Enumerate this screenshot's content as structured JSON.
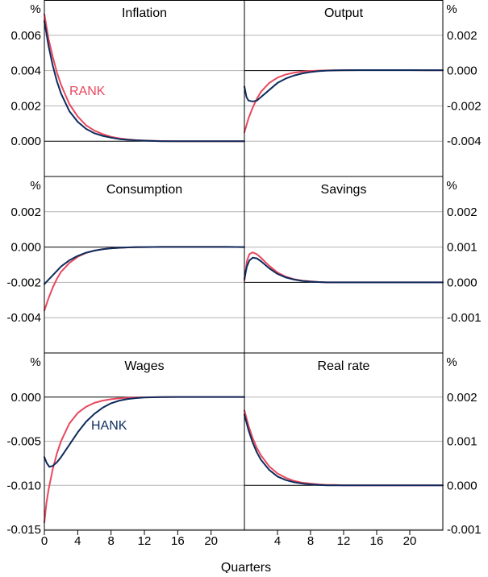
{
  "chart_data": {
    "type": "line",
    "x_axis_label": "Quarters",
    "x_ticks": [
      0,
      4,
      8,
      12,
      16,
      20
    ],
    "x_range": [
      0,
      24
    ],
    "unit_label": "%",
    "colors": {
      "RANK": "#e8485d",
      "HANK": "#0d2b5c",
      "grid": "#b3b3b3"
    },
    "series_labels": [
      {
        "panel": "inflation",
        "text": "RANK",
        "color": "#e8485d"
      },
      {
        "panel": "wages",
        "text": "HANK",
        "color": "#0d2b5c"
      }
    ],
    "panels": [
      {
        "id": "inflation",
        "title": "Inflation",
        "column": "left",
        "row": 0,
        "ylim": [
          -0.002,
          0.008
        ],
        "yticks": [
          "0.000",
          "0.002",
          "0.004",
          "0.006"
        ],
        "series": [
          {
            "name": "RANK",
            "x": [
              0,
              0.5,
              1,
              1.5,
              2,
              3,
              4,
              5,
              6,
              7,
              8,
              9,
              10,
              11,
              12,
              14,
              16,
              18,
              20,
              22,
              24
            ],
            "y": [
              0.0072,
              0.0058,
              0.0048,
              0.0039,
              0.0032,
              0.0021,
              0.0014,
              0.0009,
              0.0006,
              0.0004,
              0.00025,
              0.00016,
              0.0001,
              6e-05,
              4e-05,
              1e-05,
              0,
              0,
              0,
              0,
              0
            ]
          },
          {
            "name": "HANK",
            "x": [
              0,
              0.5,
              1,
              1.5,
              2,
              3,
              4,
              5,
              6,
              7,
              8,
              9,
              10,
              11,
              12,
              14,
              16,
              18,
              20,
              22,
              24
            ],
            "y": [
              0.0068,
              0.0054,
              0.0043,
              0.0034,
              0.0027,
              0.0017,
              0.0011,
              0.0007,
              0.00045,
              0.0003,
              0.0002,
              0.00012,
              8e-05,
              5e-05,
              3e-05,
              0,
              0,
              0,
              0,
              0,
              0
            ]
          }
        ]
      },
      {
        "id": "output",
        "title": "Output",
        "column": "right",
        "row": 0,
        "ylim": [
          -0.006,
          0.004
        ],
        "yticks": [
          "0.002",
          "0.000",
          "-0.002",
          "-0.004"
        ],
        "series": [
          {
            "name": "RANK",
            "x": [
              0,
              0.5,
              1,
              1.5,
              2,
              3,
              4,
              5,
              6,
              7,
              8,
              9,
              10,
              11,
              12,
              14,
              16,
              18,
              20,
              22,
              24
            ],
            "y": [
              -0.0035,
              -0.0027,
              -0.0021,
              -0.0016,
              -0.0012,
              -0.0007,
              -0.0004,
              -0.00022,
              -0.00012,
              -6e-05,
              -2e-05,
              0,
              1e-05,
              2e-05,
              2e-05,
              3e-05,
              3e-05,
              3e-05,
              3e-05,
              2e-05,
              2e-05
            ]
          },
          {
            "name": "HANK",
            "x": [
              0,
              0.25,
              0.5,
              1,
              1.5,
              2,
              3,
              4,
              5,
              6,
              7,
              8,
              9,
              10,
              11,
              12,
              14,
              16,
              18,
              20,
              22,
              24
            ],
            "y": [
              -0.0009,
              -0.0015,
              -0.0017,
              -0.00175,
              -0.0017,
              -0.0015,
              -0.0011,
              -0.0007,
              -0.00045,
              -0.00028,
              -0.00016,
              -8e-05,
              -3e-05,
              0,
              1e-05,
              2e-05,
              3e-05,
              3e-05,
              3e-05,
              3e-05,
              2e-05,
              2e-05
            ]
          }
        ]
      },
      {
        "id": "consumption",
        "title": "Consumption",
        "column": "left",
        "row": 1,
        "ylim": [
          -0.006,
          0.004
        ],
        "yticks": [
          "0.002",
          "0.000",
          "-0.002",
          "-0.004"
        ],
        "series": [
          {
            "name": "RANK",
            "x": [
              0,
              0.5,
              1,
              1.5,
              2,
              3,
              4,
              5,
              6,
              7,
              8,
              9,
              10,
              11,
              12,
              14,
              16,
              18,
              20,
              22,
              24
            ],
            "y": [
              -0.0036,
              -0.0029,
              -0.0023,
              -0.0018,
              -0.0014,
              -0.0009,
              -0.00055,
              -0.00033,
              -0.0002,
              -0.00012,
              -7e-05,
              -4e-05,
              -2e-05,
              -1e-05,
              0,
              1e-05,
              1e-05,
              1e-05,
              1e-05,
              1e-05,
              0
            ]
          },
          {
            "name": "HANK",
            "x": [
              0,
              0.5,
              1,
              1.5,
              2,
              3,
              4,
              5,
              6,
              7,
              8,
              9,
              10,
              11,
              12,
              14,
              16,
              18,
              20,
              22,
              24
            ],
            "y": [
              -0.0021,
              -0.00185,
              -0.0016,
              -0.00135,
              -0.0011,
              -0.00075,
              -0.0005,
              -0.00032,
              -0.0002,
              -0.00012,
              -7e-05,
              -4e-05,
              -2e-05,
              0,
              0,
              1e-05,
              1e-05,
              1e-05,
              1e-05,
              1e-05,
              0
            ]
          }
        ]
      },
      {
        "id": "savings",
        "title": "Savings",
        "column": "right",
        "row": 1,
        "ylim": [
          -0.002,
          0.003
        ],
        "yticks": [
          "0.002",
          "0.001",
          "0.000",
          "-0.001"
        ],
        "series": [
          {
            "name": "RANK",
            "x": [
              0,
              0.3,
              0.6,
              1,
              1.5,
              2,
              2.5,
              3,
              4,
              5,
              6,
              7,
              8,
              9,
              10,
              12,
              14,
              16,
              20,
              24
            ],
            "y": [
              5e-05,
              0.0006,
              0.0008,
              0.00085,
              0.0008,
              0.0007,
              0.00058,
              0.00047,
              0.00028,
              0.00016,
              9e-05,
              5e-05,
              3e-05,
              1e-05,
              0,
              0,
              0,
              0,
              0,
              0
            ]
          },
          {
            "name": "HANK",
            "x": [
              0,
              0.3,
              0.6,
              1,
              1.5,
              2,
              2.5,
              3,
              4,
              5,
              6,
              7,
              8,
              9,
              10,
              12,
              14,
              16,
              20,
              24
            ],
            "y": [
              0.0001,
              0.00045,
              0.00062,
              0.0007,
              0.00068,
              0.0006,
              0.0005,
              0.0004,
              0.00024,
              0.00014,
              8e-05,
              4e-05,
              2e-05,
              1e-05,
              0,
              0,
              0,
              0,
              0,
              0
            ]
          }
        ]
      },
      {
        "id": "wages",
        "title": "Wages",
        "column": "left",
        "row": 2,
        "ylim": [
          -0.015,
          0.005
        ],
        "yticks": [
          "0.000",
          "-0.005",
          "-0.010",
          "-0.015"
        ],
        "series": [
          {
            "name": "RANK",
            "x": [
              0,
              0.25,
              0.5,
              1,
              1.5,
              2,
              3,
              4,
              5,
              6,
              7,
              8,
              9,
              10,
              11,
              12,
              14,
              16,
              18,
              20,
              22,
              24
            ],
            "y": [
              -0.0142,
              -0.012,
              -0.0105,
              -0.0082,
              -0.0064,
              -0.005,
              -0.003,
              -0.0018,
              -0.0011,
              -0.00065,
              -0.0004,
              -0.00024,
              -0.00014,
              -8e-05,
              -4e-05,
              -2e-05,
              0,
              1e-05,
              1e-05,
              1e-05,
              1e-05,
              1e-05
            ]
          },
          {
            "name": "HANK",
            "x": [
              0,
              0.3,
              0.6,
              1,
              1.5,
              2,
              3,
              4,
              5,
              6,
              7,
              8,
              9,
              10,
              11,
              12,
              14,
              16,
              18,
              20,
              22,
              24
            ],
            "y": [
              -0.0068,
              -0.0075,
              -0.0079,
              -0.0078,
              -0.0074,
              -0.0068,
              -0.0054,
              -0.004,
              -0.0028,
              -0.0019,
              -0.0012,
              -0.0007,
              -0.0004,
              -0.00022,
              -0.00011,
              -5e-05,
              0,
              1e-05,
              1e-05,
              1e-05,
              1e-05,
              1e-05
            ]
          }
        ]
      },
      {
        "id": "real-rate",
        "title": "Real rate",
        "column": "right",
        "row": 2,
        "ylim": [
          -0.001,
          0.003
        ],
        "yticks": [
          "0.002",
          "0.001",
          "0.000",
          "-0.001"
        ],
        "series": [
          {
            "name": "RANK",
            "x": [
              0,
              0.5,
              1,
              1.5,
              2,
              3,
              4,
              5,
              6,
              7,
              8,
              9,
              10,
              11,
              12,
              14,
              16,
              18,
              20,
              22,
              24
            ],
            "y": [
              0.0017,
              0.00135,
              0.00107,
              0.00085,
              0.00068,
              0.00043,
              0.00027,
              0.00017,
              0.0001,
              6e-05,
              4e-05,
              2e-05,
              1e-05,
              1e-05,
              0,
              0,
              0,
              0,
              0,
              0,
              0
            ]
          },
          {
            "name": "HANK",
            "x": [
              0,
              0.5,
              1,
              1.5,
              2,
              3,
              4,
              5,
              6,
              7,
              8,
              9,
              10,
              11,
              12,
              14,
              16,
              18,
              20,
              22,
              24
            ],
            "y": [
              0.0016,
              0.00125,
              0.00097,
              0.00075,
              0.00058,
              0.00035,
              0.0002,
              0.00012,
              7e-05,
              4e-05,
              2e-05,
              1e-05,
              0,
              0,
              0,
              0,
              0,
              0,
              0,
              0,
              0
            ]
          }
        ]
      }
    ]
  }
}
